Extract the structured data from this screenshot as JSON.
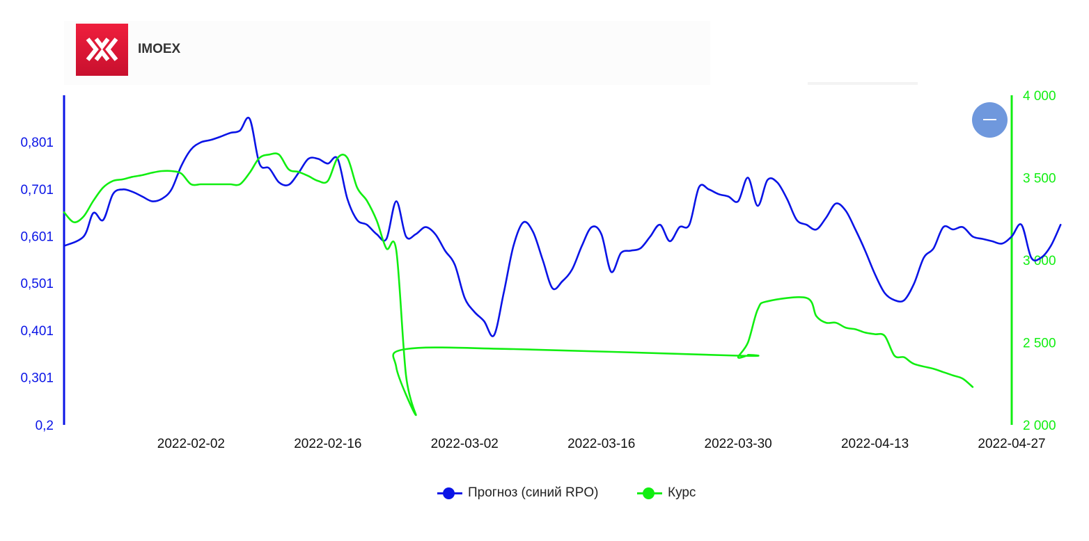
{
  "header": {
    "ticker": "IMOEX"
  },
  "colors": {
    "forecast": "#0a14e6",
    "price": "#11ee11",
    "logo": "#e31937"
  },
  "legend": {
    "forecast_label": "Прогноз (синий RPO)",
    "price_label": "Курс"
  },
  "chart_data": {
    "type": "line",
    "title": "",
    "x_ticks": [
      "2022-02-02",
      "2022-02-16",
      "2022-03-02",
      "2022-03-16",
      "2022-03-30",
      "2022-04-13",
      "2022-04-27"
    ],
    "x_range": [
      "2022-01-20",
      "2022-04-27"
    ],
    "y_left": {
      "ticks": [
        "0,2",
        "0,301",
        "0,401",
        "0,501",
        "0,601",
        "0,701",
        "0,801"
      ],
      "range": [
        0.2,
        0.9
      ]
    },
    "y_right": {
      "ticks": [
        "2 000",
        "2 500",
        "3 000",
        "3 500",
        "4 000"
      ],
      "range": [
        2000,
        4000
      ]
    },
    "grid": false,
    "legend_position": "bottom",
    "series": [
      {
        "name": "Прогноз (синий RPO)",
        "axis": "left",
        "points": [
          [
            "2022-01-20",
            0.58
          ],
          [
            "2022-01-22",
            0.6
          ],
          [
            "2022-01-23",
            0.65
          ],
          [
            "2022-01-24",
            0.635
          ],
          [
            "2022-01-25",
            0.69
          ],
          [
            "2022-01-26",
            0.7
          ],
          [
            "2022-01-27",
            0.695
          ],
          [
            "2022-01-28",
            0.685
          ],
          [
            "2022-01-29",
            0.675
          ],
          [
            "2022-01-30",
            0.68
          ],
          [
            "2022-01-31",
            0.7
          ],
          [
            "2022-02-01",
            0.75
          ],
          [
            "2022-02-02",
            0.785
          ],
          [
            "2022-02-03",
            0.8
          ],
          [
            "2022-02-04",
            0.805
          ],
          [
            "2022-02-05",
            0.812
          ],
          [
            "2022-02-06",
            0.82
          ],
          [
            "2022-02-07",
            0.825
          ],
          [
            "2022-02-08",
            0.85
          ],
          [
            "2022-02-09",
            0.755
          ],
          [
            "2022-02-10",
            0.745
          ],
          [
            "2022-02-11",
            0.715
          ],
          [
            "2022-02-12",
            0.71
          ],
          [
            "2022-02-13",
            0.735
          ],
          [
            "2022-02-14",
            0.765
          ],
          [
            "2022-02-15",
            0.765
          ],
          [
            "2022-02-16",
            0.755
          ],
          [
            "2022-02-17",
            0.765
          ],
          [
            "2022-02-18",
            0.68
          ],
          [
            "2022-02-19",
            0.635
          ],
          [
            "2022-02-20",
            0.625
          ],
          [
            "2022-02-21",
            0.605
          ],
          [
            "2022-02-22",
            0.595
          ],
          [
            "2022-02-23",
            0.675
          ],
          [
            "2022-02-24",
            0.6
          ],
          [
            "2022-02-25",
            0.605
          ],
          [
            "2022-02-26",
            0.62
          ],
          [
            "2022-02-27",
            0.605
          ],
          [
            "2022-02-28",
            0.57
          ],
          [
            "2022-03-01",
            0.54
          ],
          [
            "2022-03-02",
            0.47
          ],
          [
            "2022-03-03",
            0.44
          ],
          [
            "2022-03-04",
            0.42
          ],
          [
            "2022-03-05",
            0.39
          ],
          [
            "2022-03-06",
            0.48
          ],
          [
            "2022-03-07",
            0.58
          ],
          [
            "2022-03-08",
            0.63
          ],
          [
            "2022-03-09",
            0.61
          ],
          [
            "2022-03-10",
            0.55
          ],
          [
            "2022-03-11",
            0.49
          ],
          [
            "2022-03-12",
            0.505
          ],
          [
            "2022-03-13",
            0.53
          ],
          [
            "2022-03-14",
            0.58
          ],
          [
            "2022-03-15",
            0.62
          ],
          [
            "2022-03-16",
            0.605
          ],
          [
            "2022-03-17",
            0.525
          ],
          [
            "2022-03-18",
            0.565
          ],
          [
            "2022-03-19",
            0.57
          ],
          [
            "2022-03-20",
            0.575
          ],
          [
            "2022-03-21",
            0.6
          ],
          [
            "2022-03-22",
            0.625
          ],
          [
            "2022-03-23",
            0.59
          ],
          [
            "2022-03-24",
            0.62
          ],
          [
            "2022-03-25",
            0.625
          ],
          [
            "2022-03-26",
            0.705
          ],
          [
            "2022-03-27",
            0.7
          ],
          [
            "2022-03-28",
            0.69
          ],
          [
            "2022-03-29",
            0.685
          ],
          [
            "2022-03-30",
            0.675
          ],
          [
            "2022-03-31",
            0.725
          ],
          [
            "2022-04-01",
            0.665
          ],
          [
            "2022-04-02",
            0.72
          ],
          [
            "2022-04-03",
            0.715
          ],
          [
            "2022-04-04",
            0.68
          ],
          [
            "2022-04-05",
            0.635
          ],
          [
            "2022-04-06",
            0.625
          ],
          [
            "2022-04-07",
            0.615
          ],
          [
            "2022-04-08",
            0.64
          ],
          [
            "2022-04-09",
            0.67
          ],
          [
            "2022-04-10",
            0.655
          ],
          [
            "2022-04-11",
            0.615
          ],
          [
            "2022-04-12",
            0.57
          ],
          [
            "2022-04-13",
            0.52
          ],
          [
            "2022-04-14",
            0.48
          ],
          [
            "2022-04-15",
            0.465
          ],
          [
            "2022-04-16",
            0.465
          ],
          [
            "2022-04-17",
            0.5
          ],
          [
            "2022-04-18",
            0.555
          ],
          [
            "2022-04-19",
            0.575
          ],
          [
            "2022-04-20",
            0.62
          ],
          [
            "2022-04-21",
            0.615
          ],
          [
            "2022-04-22",
            0.62
          ],
          [
            "2022-04-23",
            0.6
          ],
          [
            "2022-04-24",
            0.595
          ],
          [
            "2022-04-25",
            0.59
          ],
          [
            "2022-04-26",
            0.585
          ],
          [
            "2022-04-27",
            0.6
          ],
          [
            "2022-04-28",
            0.625
          ],
          [
            "2022-04-29",
            0.555
          ],
          [
            "2022-04-30",
            0.555
          ],
          [
            "2022-05-01",
            0.58
          ],
          [
            "2022-05-02",
            0.625
          ]
        ]
      },
      {
        "name": "Курс",
        "axis": "right",
        "points": [
          [
            "2022-01-20",
            3290
          ],
          [
            "2022-01-21",
            3230
          ],
          [
            "2022-01-22",
            3265
          ],
          [
            "2022-01-23",
            3360
          ],
          [
            "2022-01-24",
            3440
          ],
          [
            "2022-01-25",
            3480
          ],
          [
            "2022-01-26",
            3490
          ],
          [
            "2022-01-27",
            3505
          ],
          [
            "2022-01-28",
            3515
          ],
          [
            "2022-01-29",
            3530
          ],
          [
            "2022-01-30",
            3540
          ],
          [
            "2022-01-31",
            3540
          ],
          [
            "2022-02-01",
            3525
          ],
          [
            "2022-02-02",
            3460
          ],
          [
            "2022-02-03",
            3460
          ],
          [
            "2022-02-04",
            3460
          ],
          [
            "2022-02-05",
            3460
          ],
          [
            "2022-02-06",
            3460
          ],
          [
            "2022-02-07",
            3460
          ],
          [
            "2022-02-08",
            3530
          ],
          [
            "2022-02-09",
            3620
          ],
          [
            "2022-02-10",
            3640
          ],
          [
            "2022-02-11",
            3640
          ],
          [
            "2022-02-12",
            3550
          ],
          [
            "2022-02-13",
            3535
          ],
          [
            "2022-02-14",
            3510
          ],
          [
            "2022-02-15",
            3480
          ],
          [
            "2022-02-16",
            3480
          ],
          [
            "2022-02-17",
            3620
          ],
          [
            "2022-02-18",
            3620
          ],
          [
            "2022-02-19",
            3440
          ],
          [
            "2022-02-20",
            3360
          ],
          [
            "2022-02-21",
            3240
          ],
          [
            "2022-02-22",
            3070
          ],
          [
            "2022-02-23",
            3060
          ],
          [
            "2022-02-24",
            2300
          ],
          [
            "2022-02-25",
            2060
          ],
          [
            "2022-02-23",
            2350
          ],
          [
            "2022-02-24",
            2460
          ],
          [
            "2022-03-07",
            2460
          ],
          [
            "2022-03-30",
            2420
          ],
          [
            "2022-03-31",
            2425
          ],
          [
            "2022-03-30",
            2410
          ],
          [
            "2022-03-31",
            2500
          ],
          [
            "2022-04-01",
            2700
          ],
          [
            "2022-04-02",
            2750
          ],
          [
            "2022-04-06",
            2770
          ],
          [
            "2022-04-07",
            2660
          ],
          [
            "2022-04-08",
            2620
          ],
          [
            "2022-04-09",
            2620
          ],
          [
            "2022-04-10",
            2590
          ],
          [
            "2022-04-11",
            2580
          ],
          [
            "2022-04-12",
            2560
          ],
          [
            "2022-04-13",
            2550
          ],
          [
            "2022-04-14",
            2540
          ],
          [
            "2022-04-15",
            2420
          ],
          [
            "2022-04-16",
            2410
          ],
          [
            "2022-04-17",
            2370
          ],
          [
            "2022-04-19",
            2340
          ],
          [
            "2022-04-20",
            2320
          ],
          [
            "2022-04-21",
            2300
          ],
          [
            "2022-04-22",
            2280
          ],
          [
            "2022-04-23",
            2230
          ]
        ]
      }
    ]
  }
}
